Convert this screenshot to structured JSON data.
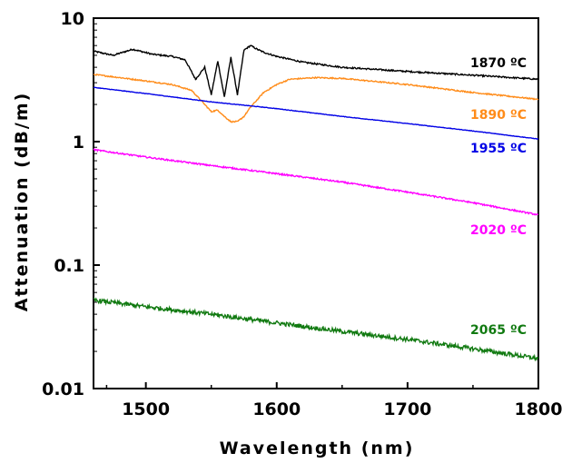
{
  "chart_data": {
    "type": "line",
    "xlabel": "Wavelength (nm)",
    "ylabel": "Attenuation (dB/m)",
    "xlim": [
      1460,
      1800
    ],
    "ylim": [
      0.01,
      10
    ],
    "yscale": "log",
    "xticks": [
      1500,
      1600,
      1700,
      1800
    ],
    "xtick_labels": [
      "1500",
      "1600",
      "1700",
      "1800"
    ],
    "yticks": [
      0.01,
      0.1,
      1,
      10
    ],
    "ytick_labels": [
      "0.01",
      "0.1",
      "1",
      "10"
    ],
    "grid": false,
    "series": [
      {
        "name": "1870 ºC",
        "color": "#000000",
        "points": [
          [
            1460,
            5.4
          ],
          [
            1475,
            5.0
          ],
          [
            1490,
            5.6
          ],
          [
            1505,
            5.1
          ],
          [
            1520,
            4.9
          ],
          [
            1530,
            4.6
          ],
          [
            1538,
            3.2
          ],
          [
            1545,
            4.0
          ],
          [
            1550,
            2.4
          ],
          [
            1555,
            4.5
          ],
          [
            1560,
            2.3
          ],
          [
            1565,
            4.8
          ],
          [
            1570,
            2.4
          ],
          [
            1575,
            5.5
          ],
          [
            1580,
            6.0
          ],
          [
            1585,
            5.6
          ],
          [
            1590,
            5.3
          ],
          [
            1600,
            4.9
          ],
          [
            1620,
            4.4
          ],
          [
            1650,
            4.0
          ],
          [
            1700,
            3.7
          ],
          [
            1750,
            3.45
          ],
          [
            1800,
            3.2
          ]
        ],
        "noise": 0.012
      },
      {
        "name": "1890 ºC",
        "color": "#ff8c1a",
        "points": [
          [
            1460,
            3.5
          ],
          [
            1480,
            3.3
          ],
          [
            1500,
            3.1
          ],
          [
            1520,
            2.9
          ],
          [
            1535,
            2.6
          ],
          [
            1545,
            2.0
          ],
          [
            1550,
            1.75
          ],
          [
            1555,
            1.8
          ],
          [
            1560,
            1.6
          ],
          [
            1565,
            1.45
          ],
          [
            1570,
            1.45
          ],
          [
            1575,
            1.6
          ],
          [
            1580,
            1.9
          ],
          [
            1590,
            2.5
          ],
          [
            1600,
            2.9
          ],
          [
            1610,
            3.2
          ],
          [
            1630,
            3.3
          ],
          [
            1650,
            3.25
          ],
          [
            1700,
            2.9
          ],
          [
            1750,
            2.5
          ],
          [
            1800,
            2.2
          ]
        ],
        "noise": 0.01
      },
      {
        "name": "1955 ºC",
        "color": "#0000e6",
        "points": [
          [
            1460,
            2.75
          ],
          [
            1500,
            2.45
          ],
          [
            1550,
            2.1
          ],
          [
            1600,
            1.85
          ],
          [
            1650,
            1.6
          ],
          [
            1700,
            1.4
          ],
          [
            1750,
            1.22
          ],
          [
            1800,
            1.05
          ]
        ],
        "noise": 0.004
      },
      {
        "name": "2020 ºC",
        "color": "#ff00ff",
        "points": [
          [
            1460,
            0.86
          ],
          [
            1500,
            0.75
          ],
          [
            1550,
            0.64
          ],
          [
            1600,
            0.55
          ],
          [
            1650,
            0.47
          ],
          [
            1700,
            0.39
          ],
          [
            1750,
            0.32
          ],
          [
            1800,
            0.255
          ]
        ],
        "noise": 0.012
      },
      {
        "name": "2065 ºC",
        "color": "#117a11",
        "points": [
          [
            1460,
            0.052
          ],
          [
            1500,
            0.046
          ],
          [
            1550,
            0.04
          ],
          [
            1600,
            0.034
          ],
          [
            1650,
            0.029
          ],
          [
            1700,
            0.025
          ],
          [
            1750,
            0.021
          ],
          [
            1800,
            0.0175
          ]
        ],
        "noise": 0.035
      }
    ]
  }
}
